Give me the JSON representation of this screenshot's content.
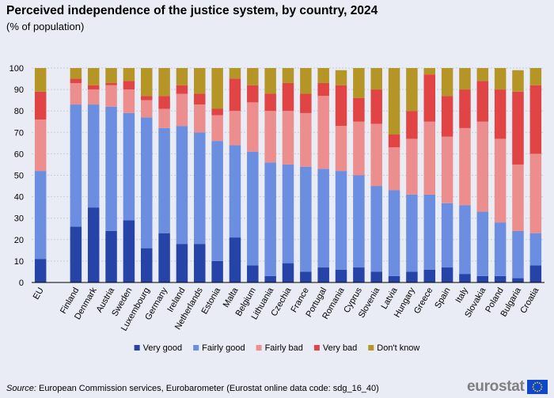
{
  "page": {
    "title": "Perceived independence of the justice system, by country, 2024",
    "subtitle": "(% of population)",
    "source_label": "Source:",
    "source_text": "European Commission services, Eurobarometer (Eurostat online data code: sdg_16_40)",
    "logo_text": "eurostat"
  },
  "colors": {
    "very_good": "#2644a7",
    "fairly_good": "#6c8ee0",
    "fairly_bad": "#ec8e8e",
    "very_bad": "#e04444",
    "dont_know": "#b59526",
    "background": "#e9ecf4",
    "grid": "#c8cdd8",
    "eu_flag": "#0e47cb",
    "eu_star": "#ffd617"
  },
  "chart_data": {
    "type": "bar",
    "stacked": true,
    "title": "Perceived independence of the justice system, by country, 2024",
    "subtitle": "(% of population)",
    "xlabel": "",
    "ylabel": "",
    "ylim": [
      0,
      100
    ],
    "yticks": [
      0,
      10,
      20,
      30,
      40,
      50,
      60,
      70,
      80,
      90,
      100
    ],
    "grid": true,
    "legend_position": "bottom",
    "categories": [
      "EU",
      "",
      "Finland",
      "Denmark",
      "Austria",
      "Sweden",
      "Luxembourg",
      "Germany",
      "Ireland",
      "Netherlands",
      "Estonia",
      "Malta",
      "Belgium",
      "Lithuania",
      "Czechia",
      "France",
      "Portugal",
      "Romania",
      "Cyprus",
      "Slovenia",
      "Latvia",
      "Hungary",
      "Greece",
      "Spain",
      "Italy",
      "Slovakia",
      "Poland",
      "Bulgaria",
      "Croatia"
    ],
    "series": [
      {
        "name": "Very good",
        "color_key": "very_good",
        "values": [
          11,
          null,
          26,
          35,
          24,
          29,
          16,
          23,
          18,
          18,
          10,
          21,
          8,
          3,
          9,
          5,
          7,
          6,
          7,
          5,
          3,
          5,
          6,
          7,
          4,
          3,
          3,
          2,
          8
        ]
      },
      {
        "name": "Fairly good",
        "color_key": "fairly_good",
        "values": [
          41,
          null,
          57,
          48,
          58,
          50,
          61,
          49,
          55,
          52,
          56,
          43,
          53,
          53,
          46,
          49,
          46,
          46,
          43,
          40,
          40,
          36,
          35,
          30,
          32,
          30,
          25,
          22,
          15
        ]
      },
      {
        "name": "Fairly bad",
        "color_key": "fairly_bad",
        "values": [
          24,
          null,
          10,
          7,
          10,
          11,
          8,
          9,
          15,
          13,
          12,
          16,
          23,
          24,
          25,
          25,
          34,
          21,
          25,
          29,
          20,
          26,
          34,
          31,
          36,
          42,
          39,
          31,
          37
        ]
      },
      {
        "name": "Very bad",
        "color_key": "very_bad",
        "values": [
          13,
          null,
          2,
          2,
          1,
          4,
          2,
          6,
          4,
          5,
          3,
          15,
          8,
          8,
          13,
          9,
          6,
          19,
          11,
          16,
          6,
          13,
          22,
          19,
          18,
          19,
          23,
          34,
          32
        ]
      },
      {
        "name": "Don't know",
        "color_key": "dont_know",
        "values": [
          11,
          null,
          5,
          8,
          7,
          6,
          13,
          13,
          8,
          12,
          19,
          5,
          8,
          12,
          7,
          12,
          7,
          7,
          14,
          10,
          31,
          20,
          3,
          13,
          10,
          6,
          10,
          10,
          8
        ]
      }
    ]
  }
}
